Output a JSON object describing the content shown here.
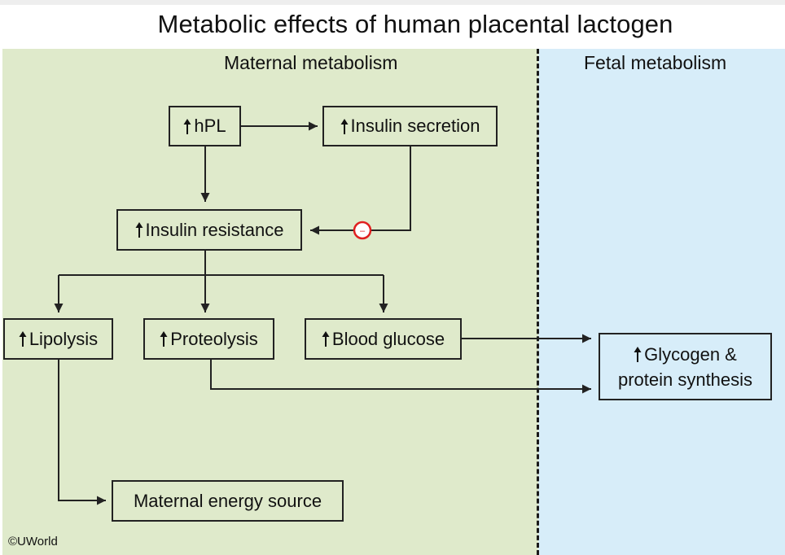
{
  "title": "Metabolic effects of human placental lactogen",
  "sections": {
    "maternal": "Maternal metabolism",
    "fetal": "Fetal metabolism"
  },
  "nodes": {
    "hpl": "hPL",
    "insulin_secretion": "Insulin secretion",
    "insulin_resistance": "Insulin resistance",
    "lipolysis": "Lipolysis",
    "proteolysis": "Proteolysis",
    "blood_glucose": "Blood glucose",
    "glycogen_line1": "Glycogen &",
    "glycogen_line2": "protein synthesis",
    "energy": "Maternal energy source"
  },
  "inhibition_symbol": "–",
  "credit": "©UWorld",
  "colors": {
    "maternal_bg": "#dfeacb",
    "fetal_bg": "#d7edf9",
    "inhibition": "#e02020"
  }
}
